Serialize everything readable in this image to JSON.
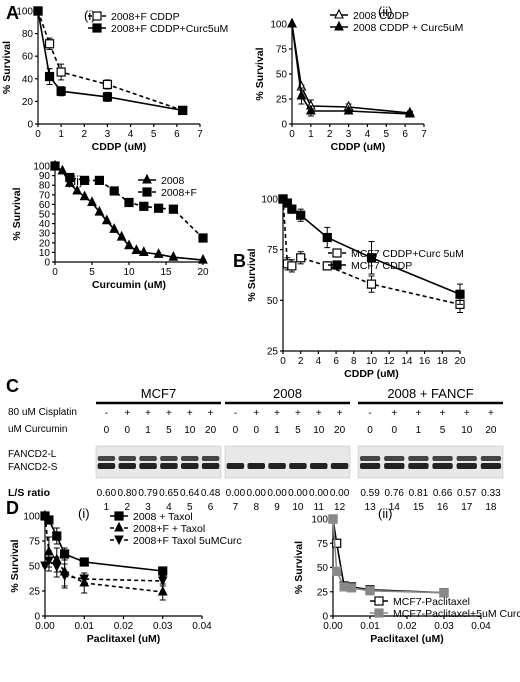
{
  "panels": {
    "A": "A",
    "B": "B",
    "C": "C",
    "D": "D"
  },
  "chart_data": [
    {
      "id": "Ai",
      "type": "line",
      "sub": "(i)",
      "xlabel": "CDDP (uM)",
      "ylabel": "% Survival",
      "xlim": [
        0,
        7
      ],
      "ylim": [
        0,
        100
      ],
      "xticks": [
        0,
        1,
        2,
        3,
        4,
        5,
        6,
        7
      ],
      "yticks": [
        0,
        20,
        40,
        60,
        80,
        100
      ],
      "series": [
        {
          "name": "2008+F CDDP",
          "marker": "square-open",
          "dash": true,
          "x": [
            0,
            0.5,
            1,
            3,
            6.25
          ],
          "y": [
            100,
            71,
            46,
            35,
            12
          ],
          "err": [
            0,
            5,
            7,
            4,
            1
          ]
        },
        {
          "name": "2008+F CDDP+Curc5uM",
          "marker": "square",
          "dash": false,
          "x": [
            0,
            0.5,
            1,
            3,
            6.25
          ],
          "y": [
            100,
            42,
            29,
            24,
            12
          ],
          "err": [
            0,
            7,
            4,
            4,
            1
          ]
        }
      ]
    },
    {
      "id": "Aii",
      "type": "line",
      "sub": "(ii)",
      "xlabel": "CDDP (uM)",
      "ylabel": "% Survival",
      "xlim": [
        0,
        7
      ],
      "ylim": [
        0,
        100
      ],
      "xticks": [
        0,
        1,
        2,
        3,
        4,
        5,
        6,
        7
      ],
      "yticks": [
        0,
        25,
        50,
        75,
        100
      ],
      "series": [
        {
          "name": "2008 CDDP",
          "marker": "triangle-open",
          "dash": false,
          "x": [
            0,
            0.5,
            1,
            3,
            6.25
          ],
          "y": [
            100,
            37,
            18,
            17,
            11
          ],
          "err": [
            0,
            2,
            6,
            3,
            2
          ]
        },
        {
          "name": "2008 CDDP + Curc5uM",
          "marker": "triangle",
          "dash": false,
          "x": [
            0,
            0.5,
            1,
            3,
            6.25
          ],
          "y": [
            100,
            28,
            13,
            13,
            10
          ],
          "err": [
            0,
            8,
            5,
            3,
            2
          ]
        }
      ]
    },
    {
      "id": "Aiii",
      "type": "line",
      "sub": "(iii)",
      "xlabel": "Curcumin (uM)",
      "ylabel": "% Survival",
      "xlim": [
        0,
        20
      ],
      "ylim": [
        0,
        100
      ],
      "xticks": [
        0,
        5,
        10,
        15,
        20
      ],
      "yticks": [
        0,
        10,
        20,
        30,
        40,
        50,
        60,
        70,
        80,
        90,
        100
      ],
      "series": [
        {
          "name": "2008",
          "marker": "triangle",
          "dash": false,
          "x": [
            0,
            1,
            2,
            3,
            4,
            5,
            6,
            7,
            8,
            9,
            10,
            11,
            12,
            14,
            16,
            20
          ],
          "y": [
            100,
            95,
            82,
            74,
            68,
            62,
            52,
            43,
            34,
            26,
            17,
            12,
            10,
            8,
            5,
            2
          ]
        },
        {
          "name": "2008+F",
          "marker": "square",
          "dash": true,
          "x": [
            0,
            2,
            4,
            6,
            8,
            10,
            12,
            14,
            16,
            20
          ],
          "y": [
            100,
            88,
            85,
            85,
            74,
            62,
            58,
            56,
            55,
            25
          ]
        }
      ]
    },
    {
      "id": "B",
      "type": "line",
      "xlabel": "CDDP (uM)",
      "ylabel": "% Survival",
      "xlim": [
        0,
        20
      ],
      "ylim": [
        25,
        100
      ],
      "xticks": [
        0,
        2,
        4,
        6,
        8,
        10,
        12,
        14,
        16,
        18,
        20
      ],
      "yticks": [
        25,
        50,
        75,
        100
      ],
      "series": [
        {
          "name": "MCF7 CDDP+Curc 5uM",
          "marker": "square-open",
          "dash": true,
          "x": [
            0,
            0.5,
            1,
            2,
            5,
            10,
            20
          ],
          "y": [
            100,
            68,
            67,
            71,
            67,
            58,
            48
          ],
          "err": [
            0,
            3,
            3,
            3,
            2,
            4,
            4
          ]
        },
        {
          "name": "MCF7 CDDP",
          "marker": "square",
          "dash": false,
          "x": [
            0,
            0.5,
            1,
            2,
            5,
            10,
            20
          ],
          "y": [
            100,
            98,
            95,
            92,
            81,
            71,
            53
          ],
          "err": [
            0,
            2,
            2,
            3,
            5,
            8,
            5
          ]
        }
      ]
    },
    {
      "id": "Di",
      "type": "line",
      "sub": "(i)",
      "xlabel": "Paclitaxel (uM)",
      "ylabel": "% Survival",
      "xlim": [
        0,
        0.04
      ],
      "ylim": [
        0,
        100
      ],
      "xticks": [
        0,
        0.01,
        0.02,
        0.03,
        0.04
      ],
      "xticklabels": [
        "0.00",
        "0.01",
        "0.02",
        "0.03",
        "0.04"
      ],
      "yticks": [
        0,
        25,
        50,
        75,
        100
      ],
      "series": [
        {
          "name": "2008 + Taxol",
          "marker": "square",
          "dash": false,
          "x": [
            0,
            0.001,
            0.003,
            0.005,
            0.01,
            0.03
          ],
          "y": [
            100,
            96,
            80,
            62,
            54,
            45
          ],
          "err": [
            0,
            3,
            8,
            6,
            3,
            2
          ]
        },
        {
          "name": "2008+F + Taxol",
          "marker": "triangle",
          "dash": true,
          "x": [
            0,
            0.001,
            0.003,
            0.005,
            0.01,
            0.03
          ],
          "y": [
            100,
            64,
            56,
            44,
            33,
            24
          ],
          "err": [
            0,
            15,
            12,
            14,
            10,
            8
          ]
        },
        {
          "name": "2008+F Taxol 5uMCurc",
          "marker": "triangle-down",
          "dash": true,
          "x": [
            0,
            0.001,
            0.003,
            0.005,
            0.01,
            0.03
          ],
          "y": [
            50,
            55,
            49,
            40,
            37,
            35
          ],
          "err": [
            0,
            10,
            10,
            12,
            6,
            5
          ]
        }
      ]
    },
    {
      "id": "Dii",
      "type": "line",
      "sub": "(ii)",
      "xlabel": "Paclitaxel (uM)",
      "ylabel": "% Survival",
      "xlim": [
        0,
        0.04
      ],
      "ylim": [
        0,
        100
      ],
      "xticks": [
        0,
        0.01,
        0.02,
        0.03,
        0.04
      ],
      "xticklabels": [
        "0.00",
        "0.01",
        "0.02",
        "0.03",
        "0.04"
      ],
      "yticks": [
        0,
        25,
        50,
        75,
        100
      ],
      "series": [
        {
          "name": "MCF7-Paclitaxel",
          "marker": "square-open",
          "dash": false,
          "x": [
            0,
            0.001,
            0.003,
            0.005,
            0.01,
            0.03
          ],
          "y": [
            100,
            75,
            31,
            30,
            27,
            24
          ]
        },
        {
          "name": "MCF7-Paclitaxel+5uM Curc",
          "marker": "square-gray",
          "dash": false,
          "x": [
            0,
            0.001,
            0.003,
            0.005,
            0.01,
            0.03
          ],
          "y": [
            100,
            46,
            30,
            29,
            26,
            24
          ]
        }
      ]
    }
  ],
  "blot": {
    "row1": "80 uM Cisplatin",
    "row2": "uM Curcumin",
    "bandL": "FANCD2-L",
    "bandS": "FANCD2-S",
    "ratio_label": "L/S ratio",
    "groups": [
      {
        "title": "MCF7",
        "cis": [
          "-",
          "+",
          "+",
          "+",
          "+",
          "+"
        ],
        "curc": [
          "0",
          "0",
          "1",
          "5",
          "10",
          "20"
        ],
        "ratios": [
          "0.60",
          "0.80",
          "0.79",
          "0.65",
          "0.64",
          "0.48"
        ],
        "lanes": [
          "1",
          "2",
          "3",
          "4",
          "5",
          "6"
        ]
      },
      {
        "title": "2008",
        "cis": [
          "-",
          "+",
          "+",
          "+",
          "+",
          "+"
        ],
        "curc": [
          "0",
          "0",
          "1",
          "5",
          "10",
          "20"
        ],
        "ratios": [
          "0.00",
          "0.00",
          "0.00",
          "0.00",
          "0.00",
          "0.00"
        ],
        "lanes": [
          "7",
          "8",
          "9",
          "10",
          "11",
          "12"
        ]
      },
      {
        "title": "2008 + FANCF",
        "cis": [
          "-",
          "+",
          "+",
          "+",
          "+",
          "+"
        ],
        "curc": [
          "0",
          "0",
          "1",
          "5",
          "10",
          "20"
        ],
        "ratios": [
          "0.59",
          "0.76",
          "0.81",
          "0.66",
          "0.57",
          "0.33"
        ],
        "lanes": [
          "13",
          "14",
          "15",
          "16",
          "17",
          "18"
        ]
      }
    ]
  }
}
